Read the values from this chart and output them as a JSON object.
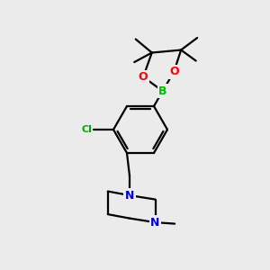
{
  "bg_color": "#ebebeb",
  "bond_color": "#000000",
  "atom_colors": {
    "B": "#00bb00",
    "O": "#ff0000",
    "N": "#0000cc",
    "Cl": "#00aa00",
    "C": "#000000"
  },
  "bond_width": 1.6,
  "figsize": [
    3.0,
    3.0
  ],
  "dpi": 100
}
